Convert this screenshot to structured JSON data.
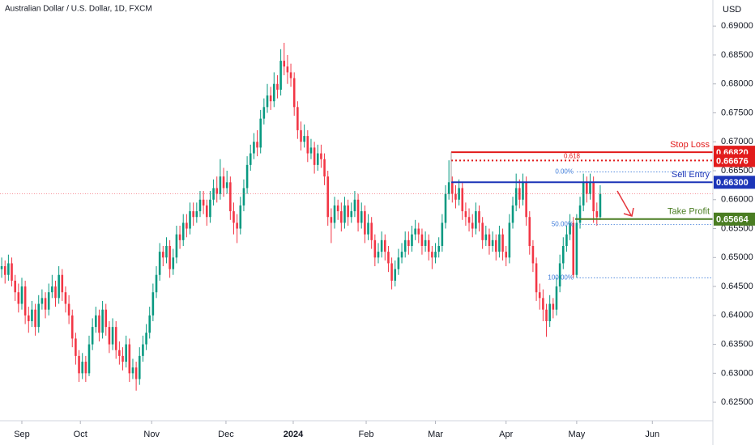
{
  "chart_data": {
    "type": "candlestick",
    "title": "Australian Dollar / U.S. Dollar, 1D, FXCM",
    "currency": "USD",
    "up_color": "#089981",
    "down_color": "#f23645",
    "xlim": [
      -0.5,
      211.5
    ],
    "xticks": [
      {
        "value": 6,
        "label": "Sep"
      },
      {
        "value": 23.4,
        "label": "Oct"
      },
      {
        "value": 44.6,
        "label": "Nov"
      },
      {
        "value": 66.7,
        "label": "Dec"
      },
      {
        "value": 86.7,
        "label": "2024"
      },
      {
        "value": 108.4,
        "label": "Feb"
      },
      {
        "value": 129,
        "label": "Mar"
      },
      {
        "value": 150,
        "label": "Apr"
      },
      {
        "value": 171,
        "label": "May"
      },
      {
        "value": 193.5,
        "label": "Jun"
      }
    ],
    "ylim": [
      0.6218,
      0.6945
    ],
    "yticks": [
      {
        "value": 0.625,
        "label": "0.62500"
      },
      {
        "value": 0.63,
        "label": "0.63000"
      },
      {
        "value": 0.635,
        "label": "0.63500"
      },
      {
        "value": 0.64,
        "label": "0.64000"
      },
      {
        "value": 0.645,
        "label": "0.64500"
      },
      {
        "value": 0.65,
        "label": "0.65000"
      },
      {
        "value": 0.655,
        "label": "0.65500"
      },
      {
        "value": 0.66,
        "label": "0.66000"
      },
      {
        "value": 0.665,
        "label": "0.66500"
      },
      {
        "value": 0.67,
        "label": "0.67000"
      },
      {
        "value": 0.675,
        "label": "0.67500"
      },
      {
        "value": 0.68,
        "label": "0.68000"
      },
      {
        "value": 0.685,
        "label": "0.68500"
      },
      {
        "value": 0.69,
        "label": "0.69000"
      }
    ],
    "open": [
      0.648,
      0.6485,
      0.647,
      0.649,
      0.646,
      0.644,
      0.642,
      0.645,
      0.64,
      0.639,
      0.641,
      0.638,
      0.642,
      0.643,
      0.641,
      0.644,
      0.645,
      0.643,
      0.647,
      0.644,
      0.642,
      0.64,
      0.636,
      0.633,
      0.63,
      0.632,
      0.63,
      0.635,
      0.638,
      0.64,
      0.637,
      0.641,
      0.638,
      0.635,
      0.638,
      0.634,
      0.633,
      0.632,
      0.635,
      0.63,
      0.631,
      0.629,
      0.633,
      0.635,
      0.637,
      0.64,
      0.644,
      0.647,
      0.651,
      0.65,
      0.652,
      0.648,
      0.65,
      0.654,
      0.653,
      0.656,
      0.655,
      0.658,
      0.657,
      0.658,
      0.66,
      0.659,
      0.657,
      0.66,
      0.662,
      0.661,
      0.664,
      0.662,
      0.663,
      0.658,
      0.656,
      0.655,
      0.659,
      0.662,
      0.666,
      0.668,
      0.67,
      0.669,
      0.674,
      0.676,
      0.678,
      0.677,
      0.68,
      0.679,
      0.684,
      0.683,
      0.682,
      0.681,
      0.676,
      0.672,
      0.67,
      0.671,
      0.668,
      0.669,
      0.666,
      0.668,
      0.667,
      0.664,
      0.657,
      0.656,
      0.659,
      0.658,
      0.656,
      0.659,
      0.657,
      0.658,
      0.66,
      0.656,
      0.658,
      0.654,
      0.656,
      0.653,
      0.65,
      0.651,
      0.653,
      0.651,
      0.649,
      0.646,
      0.648,
      0.65,
      0.651,
      0.653,
      0.652,
      0.654,
      0.655,
      0.654,
      0.652,
      0.653,
      0.651,
      0.65,
      0.651,
      0.652,
      0.656,
      0.661,
      0.663,
      0.661,
      0.66,
      0.662,
      0.658,
      0.657,
      0.656,
      0.655,
      0.658,
      0.656,
      0.653,
      0.654,
      0.652,
      0.653,
      0.651,
      0.654,
      0.651,
      0.65,
      0.656,
      0.659,
      0.662,
      0.66,
      0.663,
      0.657,
      0.652,
      0.649,
      0.644,
      0.643,
      0.641,
      0.639,
      0.642,
      0.641,
      0.645,
      0.649,
      0.652,
      0.654,
      0.656,
      0.647,
      0.656,
      0.659,
      0.663,
      0.661,
      0.663,
      0.658,
      0.657
    ],
    "high": [
      0.65,
      0.6495,
      0.6505,
      0.65,
      0.647,
      0.6455,
      0.6465,
      0.646,
      0.6415,
      0.6425,
      0.642,
      0.6435,
      0.6445,
      0.644,
      0.6455,
      0.647,
      0.646,
      0.6485,
      0.648,
      0.645,
      0.6435,
      0.641,
      0.637,
      0.634,
      0.6335,
      0.633,
      0.6365,
      0.6395,
      0.6415,
      0.641,
      0.6425,
      0.642,
      0.639,
      0.6395,
      0.639,
      0.6355,
      0.6345,
      0.6365,
      0.636,
      0.6325,
      0.632,
      0.6345,
      0.6365,
      0.6385,
      0.6415,
      0.6455,
      0.6485,
      0.6525,
      0.652,
      0.6535,
      0.653,
      0.6515,
      0.6555,
      0.6555,
      0.6575,
      0.6575,
      0.6595,
      0.6595,
      0.6595,
      0.6615,
      0.6615,
      0.66,
      0.6615,
      0.6635,
      0.664,
      0.667,
      0.6655,
      0.665,
      0.664,
      0.6595,
      0.6575,
      0.6605,
      0.6635,
      0.6675,
      0.6695,
      0.6715,
      0.672,
      0.6755,
      0.6775,
      0.68,
      0.6795,
      0.682,
      0.6815,
      0.686,
      0.6871,
      0.685,
      0.6835,
      0.682,
      0.677,
      0.6735,
      0.673,
      0.672,
      0.6705,
      0.67,
      0.6695,
      0.6695,
      0.668,
      0.665,
      0.6585,
      0.6605,
      0.66,
      0.6595,
      0.6605,
      0.66,
      0.6595,
      0.6615,
      0.661,
      0.6595,
      0.659,
      0.6575,
      0.657,
      0.654,
      0.6525,
      0.6545,
      0.654,
      0.652,
      0.65,
      0.6495,
      0.6515,
      0.6525,
      0.6545,
      0.6545,
      0.6555,
      0.6565,
      0.656,
      0.655,
      0.6545,
      0.654,
      0.652,
      0.6525,
      0.6535,
      0.6575,
      0.6625,
      0.6668,
      0.664,
      0.6625,
      0.6635,
      0.663,
      0.6595,
      0.6585,
      0.6575,
      0.6595,
      0.659,
      0.657,
      0.6555,
      0.655,
      0.6545,
      0.654,
      0.6555,
      0.655,
      0.652,
      0.6575,
      0.6605,
      0.6645,
      0.6635,
      0.6645,
      0.664,
      0.658,
      0.653,
      0.65,
      0.6455,
      0.6445,
      0.642,
      0.6435,
      0.643,
      0.6465,
      0.6505,
      0.6535,
      0.6555,
      0.6575,
      0.657,
      0.6575,
      0.6605,
      0.6645,
      0.664,
      0.6645,
      0.664,
      0.6595,
      0.6625
    ],
    "low": [
      0.6465,
      0.6455,
      0.646,
      0.645,
      0.6425,
      0.6405,
      0.641,
      0.6385,
      0.637,
      0.638,
      0.6365,
      0.637,
      0.641,
      0.6395,
      0.64,
      0.643,
      0.6415,
      0.642,
      0.6425,
      0.6405,
      0.6385,
      0.6345,
      0.6315,
      0.6285,
      0.629,
      0.6285,
      0.6295,
      0.634,
      0.637,
      0.6355,
      0.636,
      0.6365,
      0.6335,
      0.634,
      0.6325,
      0.6315,
      0.6305,
      0.631,
      0.6285,
      0.629,
      0.627,
      0.628,
      0.632,
      0.634,
      0.636,
      0.639,
      0.643,
      0.646,
      0.6485,
      0.649,
      0.6465,
      0.647,
      0.649,
      0.6515,
      0.652,
      0.6535,
      0.654,
      0.6555,
      0.656,
      0.657,
      0.6575,
      0.6555,
      0.656,
      0.659,
      0.6595,
      0.66,
      0.6605,
      0.661,
      0.6565,
      0.654,
      0.6525,
      0.654,
      0.658,
      0.661,
      0.665,
      0.667,
      0.6675,
      0.668,
      0.673,
      0.675,
      0.6755,
      0.676,
      0.6775,
      0.678,
      0.6815,
      0.68,
      0.6795,
      0.6745,
      0.6705,
      0.6685,
      0.669,
      0.6665,
      0.667,
      0.6645,
      0.665,
      0.6655,
      0.6625,
      0.6555,
      0.6525,
      0.655,
      0.6565,
      0.6545,
      0.655,
      0.6555,
      0.656,
      0.657,
      0.6545,
      0.655,
      0.6525,
      0.653,
      0.6515,
      0.6485,
      0.649,
      0.65,
      0.6495,
      0.6475,
      0.6445,
      0.645,
      0.647,
      0.649,
      0.65,
      0.6505,
      0.651,
      0.653,
      0.6525,
      0.6505,
      0.651,
      0.6495,
      0.648,
      0.649,
      0.65,
      0.651,
      0.655,
      0.66,
      0.6595,
      0.6585,
      0.659,
      0.6565,
      0.6555,
      0.6545,
      0.6535,
      0.654,
      0.6545,
      0.6515,
      0.652,
      0.6505,
      0.651,
      0.6495,
      0.65,
      0.6495,
      0.6485,
      0.649,
      0.655,
      0.658,
      0.6585,
      0.659,
      0.6555,
      0.6505,
      0.6475,
      0.6425,
      0.641,
      0.639,
      0.6363,
      0.638,
      0.6395,
      0.64,
      0.644,
      0.648,
      0.651,
      0.653,
      0.6465,
      0.6465,
      0.655,
      0.658,
      0.6595,
      0.66,
      0.656,
      0.6555,
      0.6565
    ],
    "close": [
      0.6485,
      0.647,
      0.649,
      0.646,
      0.644,
      0.642,
      0.645,
      0.64,
      0.639,
      0.641,
      0.638,
      0.642,
      0.643,
      0.641,
      0.644,
      0.645,
      0.643,
      0.647,
      0.644,
      0.642,
      0.64,
      0.636,
      0.633,
      0.63,
      0.632,
      0.63,
      0.635,
      0.638,
      0.64,
      0.637,
      0.641,
      0.638,
      0.635,
      0.638,
      0.634,
      0.633,
      0.632,
      0.635,
      0.63,
      0.631,
      0.629,
      0.633,
      0.635,
      0.637,
      0.64,
      0.644,
      0.647,
      0.651,
      0.65,
      0.652,
      0.648,
      0.65,
      0.654,
      0.653,
      0.656,
      0.655,
      0.658,
      0.657,
      0.658,
      0.66,
      0.659,
      0.657,
      0.66,
      0.662,
      0.661,
      0.664,
      0.662,
      0.663,
      0.658,
      0.656,
      0.655,
      0.659,
      0.662,
      0.666,
      0.668,
      0.67,
      0.669,
      0.674,
      0.676,
      0.678,
      0.677,
      0.68,
      0.679,
      0.684,
      0.683,
      0.682,
      0.681,
      0.676,
      0.672,
      0.67,
      0.671,
      0.668,
      0.669,
      0.666,
      0.668,
      0.667,
      0.664,
      0.657,
      0.656,
      0.659,
      0.658,
      0.656,
      0.659,
      0.657,
      0.658,
      0.66,
      0.656,
      0.658,
      0.654,
      0.656,
      0.653,
      0.65,
      0.651,
      0.653,
      0.651,
      0.649,
      0.646,
      0.648,
      0.65,
      0.651,
      0.653,
      0.652,
      0.654,
      0.655,
      0.654,
      0.652,
      0.653,
      0.651,
      0.65,
      0.651,
      0.652,
      0.656,
      0.661,
      0.663,
      0.661,
      0.66,
      0.662,
      0.658,
      0.657,
      0.656,
      0.655,
      0.658,
      0.656,
      0.653,
      0.654,
      0.652,
      0.653,
      0.651,
      0.654,
      0.651,
      0.65,
      0.656,
      0.659,
      0.662,
      0.66,
      0.663,
      0.657,
      0.652,
      0.649,
      0.644,
      0.643,
      0.641,
      0.639,
      0.642,
      0.641,
      0.645,
      0.649,
      0.652,
      0.654,
      0.656,
      0.647,
      0.656,
      0.659,
      0.663,
      0.661,
      0.663,
      0.658,
      0.657,
      0.661
    ],
    "levels": [
      {
        "name": "Stop Loss",
        "value": 0.6682,
        "label": "0.66820",
        "color": "#e21b1b"
      },
      {
        "value": 0.66676,
        "label": "0.66676",
        "color": "#e21b1b",
        "fib": 0.618
      },
      {
        "name": "Sell Entry",
        "value": 0.663,
        "label": "0.66300",
        "color": "#1c35b8"
      },
      {
        "name": "Take Profit",
        "value": 0.65664,
        "label": "0.65664",
        "color": "#4a7d22"
      }
    ],
    "fib_levels": [
      {
        "value": 0.6648,
        "label": "0.00%"
      },
      {
        "value": 0.6557,
        "label": "50.00%"
      },
      {
        "value": 0.6465,
        "label": "100.00%"
      }
    ]
  }
}
